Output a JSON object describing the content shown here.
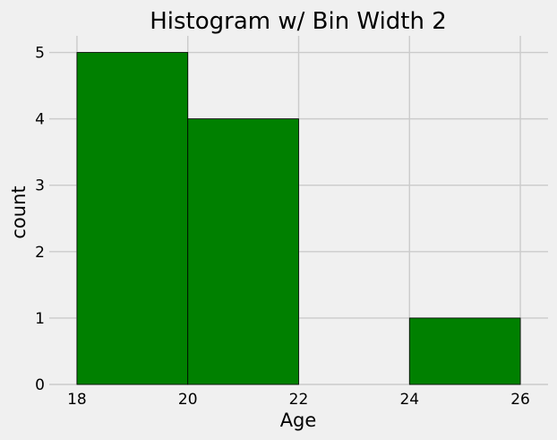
{
  "chart_data": {
    "type": "bar",
    "title": "Histogram w/ Bin Width 2",
    "xlabel": "Age",
    "ylabel": "count",
    "bins": [
      {
        "start": 18,
        "end": 20,
        "count": 5
      },
      {
        "start": 20,
        "end": 22,
        "count": 4
      },
      {
        "start": 22,
        "end": 24,
        "count": 0
      },
      {
        "start": 24,
        "end": 26,
        "count": 1
      }
    ],
    "xlim": [
      17.5,
      26.5
    ],
    "ylim": [
      0,
      5.25
    ],
    "xticks": [
      "18",
      "20",
      "22",
      "24",
      "26"
    ],
    "yticks": [
      "0",
      "1",
      "2",
      "3",
      "4",
      "5"
    ],
    "bar_color": "#008000",
    "edge_color": "#000000",
    "grid": true
  }
}
